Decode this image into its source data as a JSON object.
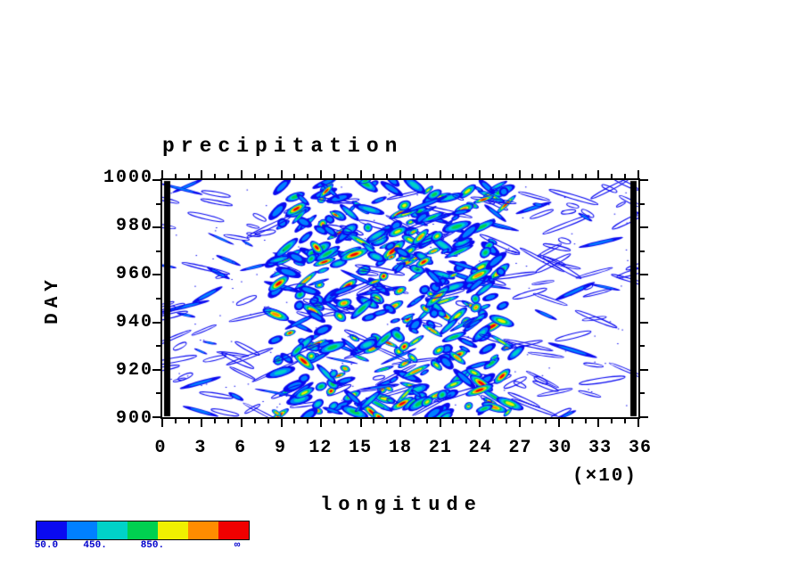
{
  "chart_data": {
    "type": "heatmap",
    "subtype": "hovmoller-diagram",
    "title": "precipitation",
    "xlabel": "longitude",
    "x_unit_note": "(×10)",
    "ylabel": "DAY",
    "xlim": [
      0,
      360
    ],
    "ylim": [
      900,
      1000
    ],
    "x_ticks": [
      0,
      3,
      6,
      9,
      12,
      15,
      18,
      21,
      24,
      27,
      30,
      33,
      36
    ],
    "x_tick_scale": 10,
    "x_minor_step_deg": 10,
    "y_ticks": [
      900,
      920,
      940,
      960,
      980,
      1000
    ],
    "y_minor_step": 10,
    "grid": false,
    "background": "#ffffff",
    "frame_color": "#000000",
    "field_description": "Scattered tilted precipitation cells (contour-filled blobs); strongest multi-level activity concentrated between longitudes ~90 and ~260 across days 900-1000; sparse thin blue streaks elsewhere; solid black bars mask the longitude edges near 0 and 360.",
    "active_band_longitude": [
      90,
      260
    ],
    "colorbar": {
      "levels": [
        "50.0",
        "450.",
        "850.",
        "∞"
      ],
      "colors": [
        "#0a0af0",
        "#0080ff",
        "#00d2c8",
        "#00d050",
        "#f0f000",
        "#ff8c00",
        "#f00000"
      ],
      "label_color": "#0000cc"
    }
  }
}
